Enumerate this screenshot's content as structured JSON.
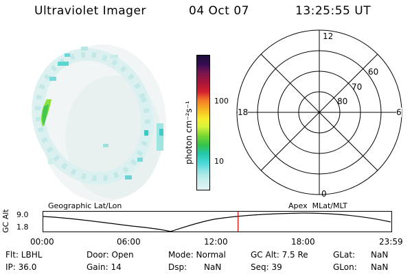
{
  "header": {
    "instrument": "Ultraviolet Imager",
    "date": "04 Oct 07",
    "time": "13:25:55 UT"
  },
  "colorbar": {
    "label": "photon cm⁻²s⁻¹",
    "ticks": [
      "100",
      "10"
    ],
    "colors": [
      "#1b0d3a",
      "#3a0d54",
      "#7a1650",
      "#a8153a",
      "#d4202e",
      "#f2762a",
      "#f7b320",
      "#f7ec2c",
      "#d7f23a",
      "#77d632",
      "#34c24e",
      "#22c8a8",
      "#4ad8d8",
      "#9ee6e6",
      "#c9eeee",
      "#e3f3f3"
    ]
  },
  "polar_plot": {
    "mlt_labels": {
      "top": "12",
      "left": "18",
      "right": "6",
      "bottom": "0"
    },
    "lat_labels": [
      "60",
      "70",
      "80"
    ]
  },
  "timeline": {
    "left_title": "Geographic Lat/Lon",
    "right_title": "Apex  MLat/MLT",
    "y_axis_label": "GC Alt",
    "y_ticks": [
      "9.0",
      "1.8"
    ],
    "x_ticks": [
      "00:00",
      "06:00",
      "12:00",
      "18:00",
      "23:59"
    ],
    "current_time_marker_hour": 13.43,
    "current_marker_color": "#cc0000"
  },
  "status": {
    "flt": "Flt: LBHL",
    "door": "Door: Open",
    "mode": "Mode: Normal",
    "gcalt": "GC Alt: 7.5 Re",
    "glat_label": "GLat:",
    "glat_value": "NaN",
    "ip": "IP: 36.0",
    "gain": "Gain: 14",
    "dsp_label": "Dsp:",
    "dsp_value": "NaN",
    "seq": "Seq: 39",
    "glon_label": "GLon:",
    "glon_value": "NaN"
  }
}
